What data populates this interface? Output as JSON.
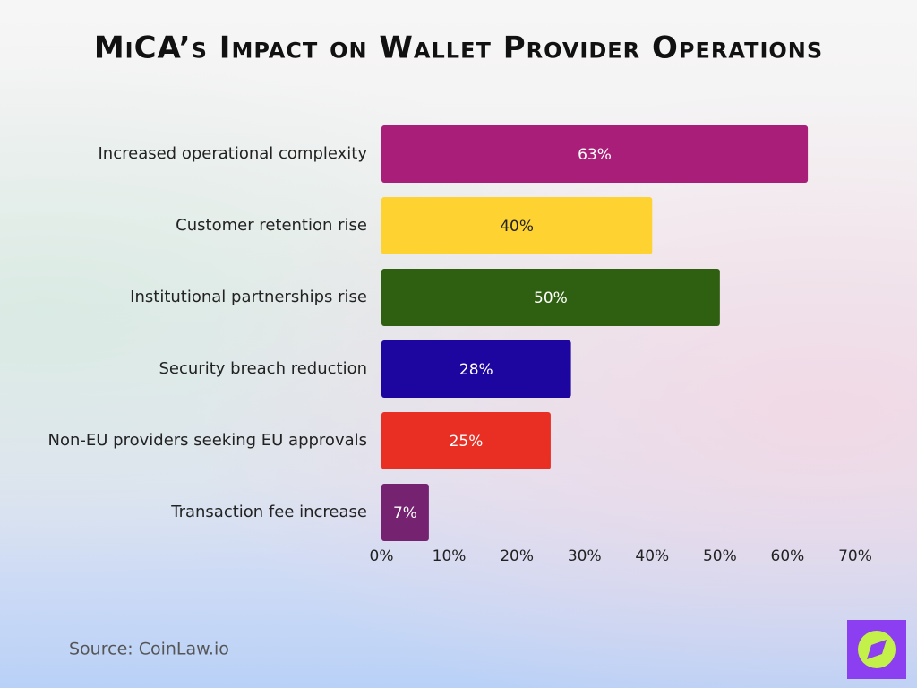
{
  "chart_data": {
    "type": "hbar",
    "title": "MiCA’s Impact on Wallet Provider Operations",
    "categories": [
      "Increased operational complexity",
      "Customer retention rise",
      "Institutional partnerships rise",
      "Security breach reduction",
      "Non-EU providers seeking EU approvals",
      "Transaction fee increase"
    ],
    "values": [
      63,
      40,
      50,
      28,
      25,
      7
    ],
    "value_labels": [
      "63%",
      "40%",
      "50%",
      "28%",
      "25%",
      "7%"
    ],
    "colors": [
      "#a81e78",
      "#fdd231",
      "#2f6011",
      "#1d059f",
      "#e92f23",
      "#752370"
    ],
    "value_label_colors": [
      "#ffffff",
      "#222222",
      "#ffffff",
      "#ffffff",
      "#ffffff",
      "#ffffff"
    ],
    "xlim": [
      0,
      70
    ],
    "xticks": [
      {
        "value": 0,
        "label": "0%"
      },
      {
        "value": 10,
        "label": "10%"
      },
      {
        "value": 20,
        "label": "20%"
      },
      {
        "value": 30,
        "label": "30%"
      },
      {
        "value": 40,
        "label": "40%"
      },
      {
        "value": 50,
        "label": "50%"
      },
      {
        "value": 60,
        "label": "60%"
      },
      {
        "value": 70,
        "label": "70%"
      }
    ],
    "source": "Source: CoinLaw.io"
  }
}
